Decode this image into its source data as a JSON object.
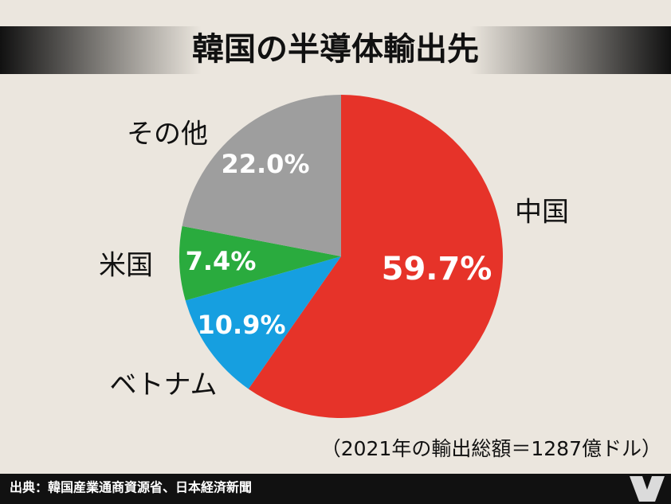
{
  "chart_data": {
    "type": "pie",
    "title": "韓国の半導体輸出先",
    "categories": [
      "中国",
      "ベトナム",
      "米国",
      "その他"
    ],
    "values": [
      59.7,
      10.9,
      7.4,
      22.0
    ],
    "value_labels": [
      "59.7%",
      "10.9%",
      "7.4%",
      "22.0%"
    ],
    "colors": [
      "#e63329",
      "#169fe0",
      "#2aab3e",
      "#9e9e9e"
    ],
    "annotation": "（2021年の輸出総額＝1287億ドル）",
    "source": "出典：韓国産業通商資源省、日本経済新聞"
  }
}
